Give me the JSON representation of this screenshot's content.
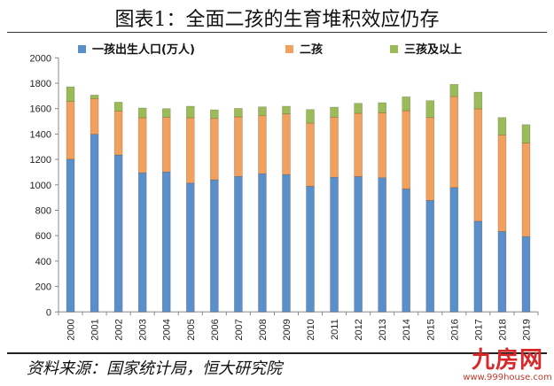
{
  "title": "图表1：全面二孩的生育堆积效应仍存",
  "source": "资料来源：国家统计局，恒大研究院",
  "watermark": {
    "logo": "九房网",
    "url": "www.999house.com"
  },
  "chart_data": {
    "type": "bar",
    "stacked": true,
    "title": "",
    "xlabel": "",
    "ylabel": "",
    "ylim": [
      0,
      2000
    ],
    "yticks": [
      0,
      200,
      400,
      600,
      800,
      1000,
      1200,
      1400,
      1600,
      1800,
      2000
    ],
    "grid": false,
    "legend_position": "top",
    "categories": [
      "2000",
      "2001",
      "2002",
      "2003",
      "2004",
      "2005",
      "2006",
      "2007",
      "2008",
      "2009",
      "2010",
      "2011",
      "2012",
      "2013",
      "2014",
      "2015",
      "2016",
      "2017",
      "2018",
      "2019"
    ],
    "series": [
      {
        "name": "一孩出生人口(万人)",
        "color": "#5b8fc9",
        "values": [
          1202,
          1398,
          1235,
          1095,
          1102,
          1014,
          1040,
          1067,
          1088,
          1081,
          988,
          1060,
          1065,
          1056,
          967,
          877,
          979,
          714,
          633,
          593
        ]
      },
      {
        "name": "二孩",
        "color": "#f2a05e",
        "values": [
          454,
          281,
          346,
          433,
          431,
          514,
          483,
          468,
          456,
          477,
          498,
          473,
          498,
          511,
          617,
          653,
          716,
          884,
          760,
          737
        ]
      },
      {
        "name": "三孩及以上",
        "color": "#9bbb59",
        "values": [
          116,
          28,
          70,
          77,
          67,
          91,
          68,
          67,
          70,
          61,
          107,
          79,
          79,
          80,
          109,
          133,
          96,
          132,
          137,
          144
        ]
      }
    ]
  }
}
